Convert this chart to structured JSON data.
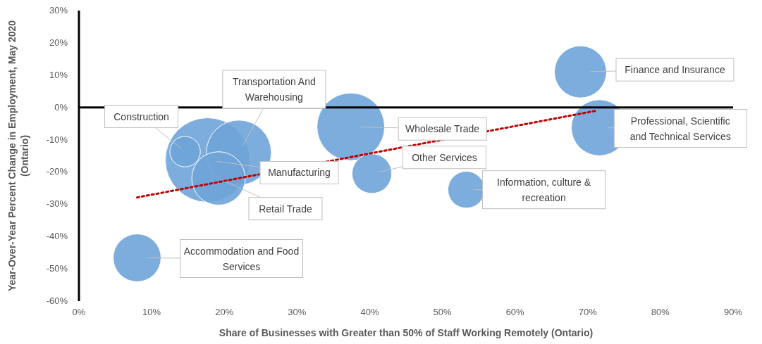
{
  "chart_data": {
    "type": "bubble",
    "xlabel": "Share of Businesses with Greater than 50% of Staff Working Remotely (Ontario)",
    "ylabel": "Year-Over-Year Percent Change in Employment, May 2020 (Ontario)",
    "xlim": [
      0,
      90
    ],
    "ylim": [
      -60,
      30
    ],
    "xticks": [
      {
        "value": 0,
        "label": "0%"
      },
      {
        "value": 10,
        "label": "10%"
      },
      {
        "value": 20,
        "label": "20%"
      },
      {
        "value": 30,
        "label": "30%"
      },
      {
        "value": 40,
        "label": "40%"
      },
      {
        "value": 50,
        "label": "50%"
      },
      {
        "value": 60,
        "label": "60%"
      },
      {
        "value": 70,
        "label": "70%"
      },
      {
        "value": 80,
        "label": "80%"
      },
      {
        "value": 90,
        "label": "90%"
      }
    ],
    "yticks": [
      {
        "value": -60,
        "label": "-60%"
      },
      {
        "value": -50,
        "label": "-50%"
      },
      {
        "value": -40,
        "label": "-40%"
      },
      {
        "value": -30,
        "label": "-30%"
      },
      {
        "value": -20,
        "label": "-20%"
      },
      {
        "value": -10,
        "label": "-10%"
      },
      {
        "value": 0,
        "label": "0%"
      },
      {
        "value": 10,
        "label": "10%"
      },
      {
        "value": 20,
        "label": "20%"
      },
      {
        "value": 30,
        "label": "30%"
      }
    ],
    "series": [
      {
        "name": "Manufacturing",
        "color": "#6fa4d8",
        "x": [
          17.7
        ],
        "values": [
          -16.3
        ],
        "sizes": [
          1
        ]
      },
      {
        "name": "Finance and Insurance",
        "color": "#6fa4d8",
        "x": [
          69
        ],
        "values": [
          11
        ],
        "sizes": [
          0.38
        ]
      },
      {
        "name": "Professional, Scientific and Technical Services",
        "color": "#6fa4d8",
        "x": [
          71.6
        ],
        "values": [
          -6.3
        ],
        "sizes": [
          0.44
        ]
      },
      {
        "name": "Wholesale Trade",
        "color": "#6fa4d8",
        "x": [
          37.4
        ],
        "values": [
          -6
        ],
        "sizes": [
          0.64
        ]
      },
      {
        "name": "Other Services",
        "color": "#6fa4d8",
        "x": [
          40.3
        ],
        "values": [
          -20.5
        ],
        "sizes": [
          0.22
        ]
      },
      {
        "name": "Information, culture & recreation",
        "color": "#6fa4d8",
        "x": [
          53.3
        ],
        "values": [
          -25.5
        ],
        "sizes": [
          0.19
        ]
      },
      {
        "name": "Accommodation and Food Services",
        "color": "#6fa4d8",
        "x": [
          8
        ],
        "values": [
          -46.6
        ],
        "sizes": [
          0.32
        ]
      },
      {
        "name": "Construction",
        "color": "#6fa4d8",
        "x": [
          14.6
        ],
        "values": [
          -13.7
        ],
        "sizes": [
          0.13
        ]
      },
      {
        "name": "Transportation And Warehousing",
        "color": "#6fa4d8",
        "x": [
          22
        ],
        "values": [
          -14
        ],
        "sizes": [
          0.59
        ]
      },
      {
        "name": "Retail Trade",
        "color": "#6fa4d8",
        "x": [
          19.2
        ],
        "values": [
          -22
        ],
        "sizes": [
          0.4
        ]
      },
      {
        "type": "line",
        "color": "#c00000",
        "line_style": "dotted",
        "x": [
          8,
          71
        ],
        "values": [
          -27.9,
          -1.1
        ]
      }
    ]
  }
}
